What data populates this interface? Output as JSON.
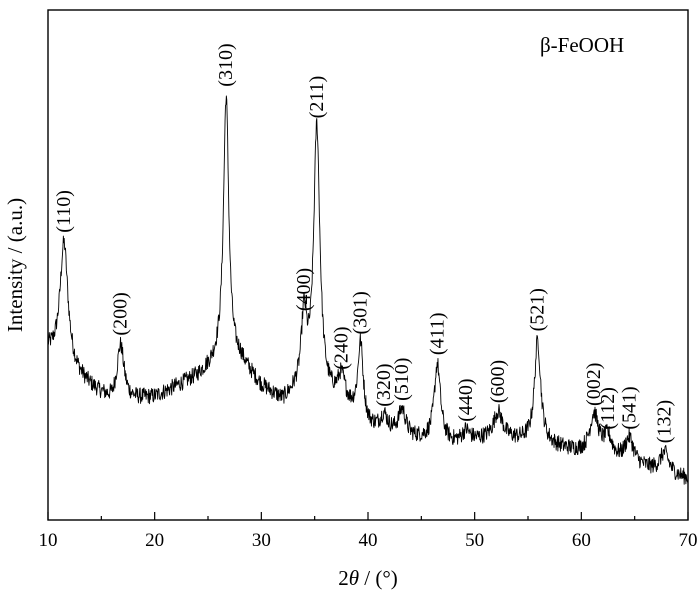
{
  "chart_data": {
    "type": "line",
    "title": "",
    "xlabel": "2θ / (°)",
    "xlabel_parts": {
      "symbol": "2",
      "italic": "θ",
      "unit": " / (°)"
    },
    "ylabel": "Intensity / (a.u.)",
    "xlim": [
      10,
      70
    ],
    "ylim": [
      0,
      100
    ],
    "y_ticks_shown": false,
    "grid": false,
    "x_ticks_major": [
      10,
      20,
      30,
      40,
      50,
      60,
      70
    ],
    "x_tick_labels": [
      "10",
      "20",
      "30",
      "40",
      "50",
      "60",
      "70"
    ],
    "x_ticks_minor": [
      15,
      25,
      35,
      45,
      55,
      65
    ],
    "legend_text": "β-FeOOH",
    "legend_placement": "top-right",
    "series": [
      {
        "baseline": [
          [
            10,
            33
          ],
          [
            14,
            26
          ],
          [
            16,
            23
          ],
          [
            20,
            24
          ],
          [
            24,
            28
          ],
          [
            26,
            31
          ],
          [
            28,
            31
          ],
          [
            30,
            26
          ],
          [
            32,
            23
          ],
          [
            34,
            26
          ],
          [
            36,
            24
          ],
          [
            38,
            22
          ],
          [
            40,
            18
          ],
          [
            44,
            16
          ],
          [
            48,
            15
          ],
          [
            52,
            16
          ],
          [
            56,
            15
          ],
          [
            60,
            13
          ],
          [
            64,
            11
          ],
          [
            68,
            9
          ],
          [
            70,
            8
          ]
        ],
        "peaks": [
          {
            "x": 11.5,
            "h": 24,
            "w": 0.45,
            "label": "(110)"
          },
          {
            "x": 16.8,
            "h": 11,
            "w": 0.4,
            "label": "(200)"
          },
          {
            "x": 26.7,
            "h": 52,
            "w": 0.3,
            "label": "(310)"
          },
          {
            "x": 34.0,
            "h": 13,
            "w": 0.3,
            "label": "(400)"
          },
          {
            "x": 35.2,
            "h": 52,
            "w": 0.35,
            "label": "(211)"
          },
          {
            "x": 37.5,
            "h": 5,
            "w": 0.4,
            "label": "(240)"
          },
          {
            "x": 39.3,
            "h": 15,
            "w": 0.3,
            "label": "(301)"
          },
          {
            "x": 41.5,
            "h": 3,
            "w": 0.4,
            "label": "(320)"
          },
          {
            "x": 43.2,
            "h": 5,
            "w": 0.4,
            "label": "(510)"
          },
          {
            "x": 46.5,
            "h": 15,
            "w": 0.35,
            "label": "(411)"
          },
          {
            "x": 49.2,
            "h": 2,
            "w": 0.4,
            "label": "(440)"
          },
          {
            "x": 52.2,
            "h": 5,
            "w": 0.5,
            "label": "(600)"
          },
          {
            "x": 55.9,
            "h": 20,
            "w": 0.35,
            "label": "(521)"
          },
          {
            "x": 61.2,
            "h": 8,
            "w": 0.5,
            "label": "(002)"
          },
          {
            "x": 62.5,
            "h": 4,
            "w": 0.5,
            "label": "(112)"
          },
          {
            "x": 64.5,
            "h": 5,
            "w": 0.5,
            "label": "(541)"
          },
          {
            "x": 67.8,
            "h": 4,
            "w": 0.5,
            "label": "(132)"
          }
        ],
        "noise_amplitude": 1.6
      }
    ]
  }
}
